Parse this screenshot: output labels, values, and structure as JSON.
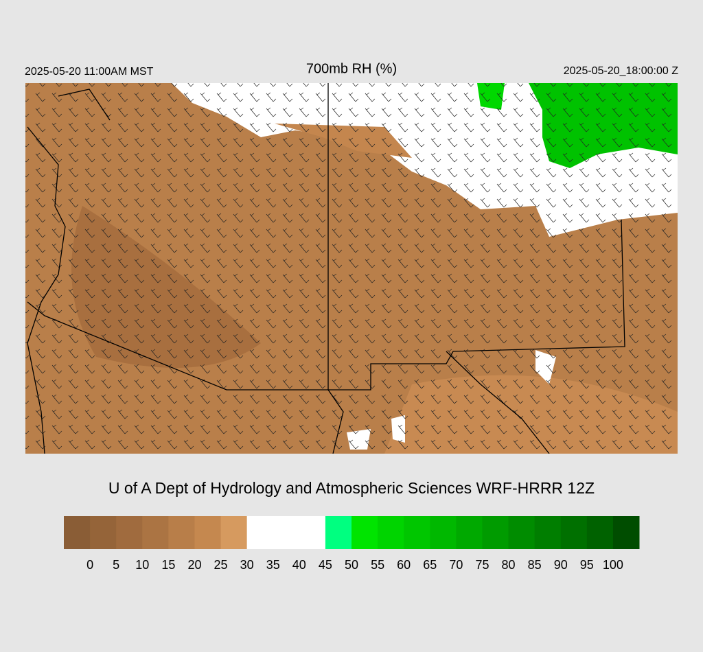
{
  "header": {
    "left": "2025-05-20 11:00AM MST",
    "title": "700mb RH (%)",
    "right": "2025-05-20_18:00:00 Z"
  },
  "footer": "U of A Dept of Hydrology and Atmospheric Sciences WRF-HRRR 12Z",
  "colorbar": {
    "colors": [
      "#8a5d36",
      "#956439",
      "#a06b3e",
      "#ab7443",
      "#b87e49",
      "#c5884f",
      "#d69a5f",
      "#ffffff",
      "#ffffff",
      "#ffffff",
      "#00ff80",
      "#00e400",
      "#00d400",
      "#00c600",
      "#00b800",
      "#00a900",
      "#009b00",
      "#008c00",
      "#007e00",
      "#007000",
      "#006200",
      "#004d00"
    ],
    "labels": [
      0,
      5,
      10,
      15,
      20,
      25,
      30,
      35,
      40,
      45,
      50,
      55,
      60,
      65,
      70,
      75,
      80,
      85,
      90,
      95,
      100
    ]
  }
}
